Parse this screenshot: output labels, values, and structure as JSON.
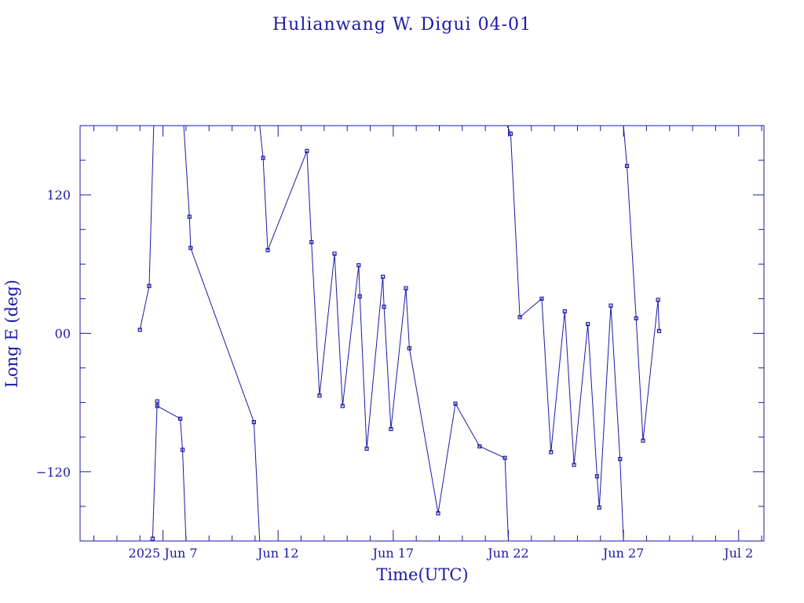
{
  "chart_data": {
    "type": "line",
    "title": "Hulianwang W. Digui 04-01",
    "xlabel": "Time(UTC)",
    "ylabel": "Long E (deg)",
    "x_unit": "days of 2025 (June 1 = day 1)",
    "xlim": [
      3.4,
      33.1
    ],
    "ylim": [
      -180,
      180
    ],
    "x_tick_labels": [
      "2025 Jun  7",
      "Jun 12",
      "Jun 17",
      "Jun 22",
      "Jun 27",
      "Jul  2"
    ],
    "x_tick_values": [
      7,
      12,
      17,
      22,
      27,
      32
    ],
    "y_tick_labels": [
      "−120",
      "00",
      "120"
    ],
    "y_tick_values": [
      -120,
      0,
      120
    ],
    "grid": false,
    "wrap_longitude": true,
    "series": [
      {
        "points": [
          [
            6.0,
            3
          ],
          [
            6.4,
            41
          ],
          [
            6.6,
            180
          ],
          [
            6.55,
            -178
          ],
          [
            6.75,
            -59
          ],
          [
            6.75,
            -63
          ],
          [
            7.75,
            -74
          ],
          [
            7.85,
            -101
          ],
          [
            8.0,
            -180
          ],
          [
            7.9,
            180
          ],
          [
            8.15,
            101
          ],
          [
            8.2,
            74
          ],
          [
            10.95,
            -77
          ],
          [
            11.2,
            -180
          ],
          [
            11.2,
            180
          ],
          [
            11.35,
            152
          ],
          [
            11.55,
            72
          ],
          [
            13.25,
            158
          ],
          [
            13.45,
            79
          ],
          [
            13.8,
            -54
          ],
          [
            14.45,
            69
          ],
          [
            14.8,
            -63
          ],
          [
            15.5,
            59
          ],
          [
            15.55,
            32
          ],
          [
            15.85,
            -100
          ],
          [
            16.55,
            49
          ],
          [
            16.6,
            23
          ],
          [
            16.9,
            -83
          ],
          [
            17.55,
            39
          ],
          [
            17.7,
            -13
          ],
          [
            18.95,
            -156
          ],
          [
            19.7,
            -61
          ],
          [
            20.75,
            -98
          ],
          [
            21.85,
            -108
          ],
          [
            22.0,
            -180
          ],
          [
            21.95,
            180
          ],
          [
            22.1,
            173
          ],
          [
            22.5,
            14
          ],
          [
            23.45,
            30
          ],
          [
            23.85,
            -103
          ],
          [
            24.45,
            19
          ],
          [
            24.85,
            -114
          ],
          [
            25.45,
            8
          ],
          [
            25.85,
            -124
          ],
          [
            25.95,
            -151
          ],
          [
            26.45,
            24
          ],
          [
            26.85,
            -109
          ],
          [
            27.0,
            -180
          ],
          [
            27.0,
            180
          ],
          [
            27.15,
            145
          ],
          [
            27.55,
            13
          ],
          [
            27.85,
            -93
          ],
          [
            28.5,
            29
          ],
          [
            28.55,
            2
          ]
        ]
      }
    ]
  }
}
